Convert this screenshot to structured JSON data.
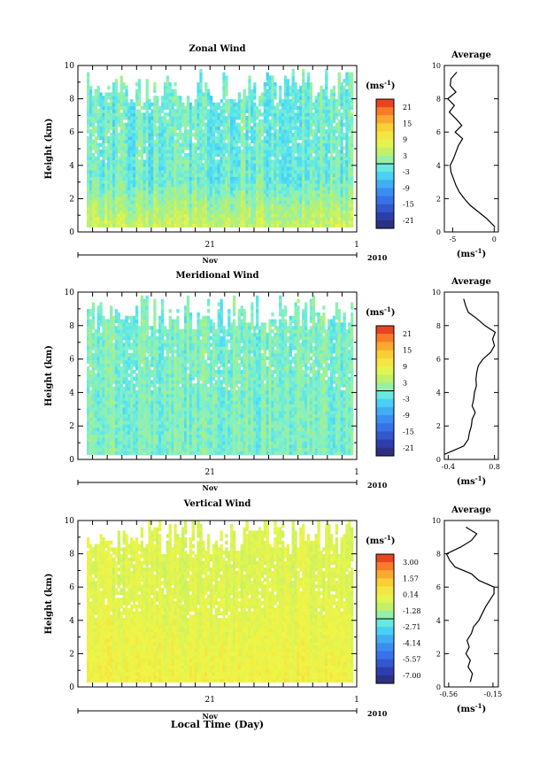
{
  "chart_data": [
    {
      "type": "heatmap",
      "title": "Zonal Wind",
      "ylabel": "Height (km)",
      "ylim": [
        0,
        10
      ],
      "y_ticks": [
        "0",
        "2",
        "4",
        "6",
        "8",
        "10"
      ],
      "x_tick_label": "21",
      "x_end_label": "1",
      "month_label": "Nov",
      "year_label": "2010",
      "colorbar": {
        "unit": "(ms",
        "unit_exp": "-1",
        "unit_close": ")",
        "labels": [
          "21",
          "15",
          "9",
          "3",
          "-3",
          "-9",
          "-15",
          "-21"
        ],
        "range": [
          -24,
          24
        ]
      },
      "field": {
        "base": -5,
        "hi_rows": [
          [
            0.0,
            6
          ],
          [
            3.0,
            -1
          ]
        ],
        "variance": 4.5,
        "max_height_km": 9.7
      },
      "profile": {
        "title": "Average",
        "x_ticks": [
          "-5",
          "0"
        ],
        "xlim": [
          -6,
          0.5
        ],
        "xlabel": "(ms",
        "xlabel_exp": "-1",
        "xlabel_close": ")",
        "y_ticks": [
          "0",
          "2",
          "4",
          "6",
          "8",
          "10"
        ],
        "heights": [
          0.3,
          0.8,
          1.2,
          1.6,
          2.0,
          2.4,
          2.8,
          3.2,
          3.6,
          4.0,
          4.4,
          4.8,
          5.2,
          5.6,
          6.0,
          6.4,
          6.8,
          7.2,
          7.6,
          8.0,
          8.4,
          8.8,
          9.2,
          9.6
        ],
        "values": [
          0.1,
          -0.9,
          -1.9,
          -2.9,
          -3.6,
          -4.2,
          -4.6,
          -4.9,
          -5.2,
          -5.3,
          -4.9,
          -4.6,
          -4.3,
          -3.8,
          -4.7,
          -3.9,
          -4.6,
          -5.4,
          -4.8,
          -5.6,
          -4.6,
          -5.3,
          -5.2,
          -4.5
        ]
      }
    },
    {
      "type": "heatmap",
      "title": "Meridional Wind",
      "ylabel": "Height (km)",
      "ylim": [
        0,
        10
      ],
      "y_ticks": [
        "0",
        "2",
        "4",
        "6",
        "8",
        "10"
      ],
      "x_tick_label": "21",
      "x_end_label": "1",
      "month_label": "Nov",
      "year_label": "2010",
      "colorbar": {
        "unit": "(ms",
        "unit_exp": "-1",
        "unit_close": ")",
        "labels": [
          "21",
          "15",
          "9",
          "3",
          "-3",
          "-9",
          "-15",
          "-21"
        ],
        "range": [
          -24,
          24
        ]
      },
      "field": {
        "base": 0,
        "hi_rows": [
          [
            0.0,
            0
          ],
          [
            5.0,
            0
          ]
        ],
        "variance": 4.0,
        "max_height_km": 9.8
      },
      "profile": {
        "title": "Average",
        "x_ticks": [
          "-0.4",
          "0.8"
        ],
        "xlim": [
          -0.5,
          0.9
        ],
        "xlabel": "(ms",
        "xlabel_exp": "-1",
        "xlabel_close": ")",
        "y_ticks": [
          "0",
          "2",
          "4",
          "6",
          "8",
          "10"
        ],
        "heights": [
          0.3,
          0.8,
          1.2,
          1.6,
          2.0,
          2.4,
          2.8,
          3.2,
          3.6,
          4.0,
          4.4,
          4.8,
          5.2,
          5.6,
          6.0,
          6.4,
          6.8,
          7.2,
          7.6,
          8.0,
          8.4,
          8.8,
          9.2,
          9.6
        ],
        "values": [
          -0.5,
          0.0,
          0.12,
          0.15,
          0.2,
          0.22,
          0.3,
          0.22,
          0.26,
          0.28,
          0.33,
          0.32,
          0.34,
          0.38,
          0.5,
          0.7,
          0.8,
          0.75,
          0.82,
          0.55,
          0.35,
          0.12,
          0.05,
          0.0
        ]
      }
    },
    {
      "type": "heatmap",
      "title": "Vertical Wind",
      "ylabel": "Height (km)",
      "xlabel": "Local Time (Day)",
      "ylim": [
        0,
        10
      ],
      "y_ticks": [
        "0",
        "2",
        "4",
        "6",
        "8",
        "10"
      ],
      "x_tick_label": "21",
      "x_end_label": "1",
      "month_label": "Nov",
      "year_label": "2010",
      "colorbar": {
        "unit": "(ms",
        "unit_exp": "-1",
        "unit_close": ")",
        "labels": [
          "3.00",
          "1.57",
          "0.14",
          "-1.28",
          "-2.71",
          "-4.14",
          "-5.57",
          "-7.00"
        ],
        "range": [
          -7.7,
          3.7
        ]
      },
      "field": {
        "base": 0.4,
        "hi_rows": [
          [
            0.0,
            0.2
          ],
          [
            6.0,
            -0.3
          ]
        ],
        "variance": 0.6,
        "max_height_km": 10.0
      },
      "profile": {
        "title": "Average",
        "x_ticks": [
          "-0.56",
          "-0.15"
        ],
        "xlim": [
          -0.6,
          -0.1
        ],
        "xlabel": "(ms",
        "xlabel_exp": "-1",
        "xlabel_close": ")",
        "y_ticks": [
          "0",
          "2",
          "4",
          "6",
          "8",
          "10"
        ],
        "heights": [
          0.3,
          0.8,
          1.2,
          1.6,
          2.0,
          2.4,
          2.8,
          3.2,
          3.6,
          4.0,
          4.4,
          4.8,
          5.2,
          5.6,
          6.0,
          6.4,
          6.8,
          7.2,
          7.6,
          8.0,
          8.4,
          8.8,
          9.2,
          9.6
        ],
        "values": [
          -0.36,
          -0.34,
          -0.38,
          -0.36,
          -0.4,
          -0.37,
          -0.39,
          -0.35,
          -0.33,
          -0.28,
          -0.25,
          -0.22,
          -0.18,
          -0.14,
          -0.14,
          -0.28,
          -0.35,
          -0.5,
          -0.55,
          -0.58,
          -0.45,
          -0.35,
          -0.3,
          -0.4
        ]
      }
    }
  ]
}
